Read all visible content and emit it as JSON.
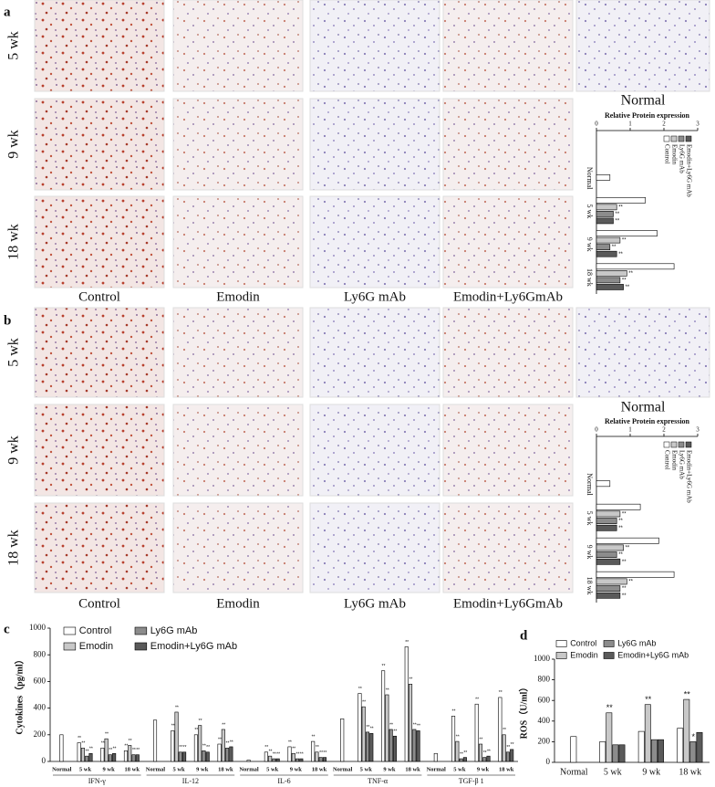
{
  "figure": {
    "panels": [
      "a",
      "b",
      "c",
      "d"
    ],
    "rows": [
      "5 wk",
      "9 wk",
      "18 wk"
    ],
    "columns": [
      "Control",
      "Emodin",
      "Ly6G mAb",
      "Emodin+Ly6GmAb"
    ],
    "normal_label": "Normal"
  },
  "chart_data": [
    {
      "type": "hbar",
      "title": "Relative Protein expression",
      "categories": [
        "Normal",
        "5 wk",
        "9 wk",
        "18 wk"
      ],
      "series": [
        {
          "name": "Control",
          "color": "#ffffff",
          "values": [
            0.4,
            1.45,
            1.8,
            2.3
          ],
          "annotations": [
            null,
            null,
            null,
            null
          ]
        },
        {
          "name": "Emodin",
          "color": "#c8c8c8",
          "values": [
            null,
            0.6,
            0.7,
            0.9
          ],
          "annotations": [
            null,
            "**",
            "**",
            "**"
          ]
        },
        {
          "name": "Ly6G mAb",
          "color": "#8c8c8c",
          "values": [
            null,
            0.5,
            0.4,
            0.7
          ],
          "annotations": [
            null,
            "**",
            "**",
            "**"
          ]
        },
        {
          "name": "Emodin+Ly6G mAb",
          "color": "#5a5a5a",
          "values": [
            null,
            0.5,
            0.6,
            0.8
          ],
          "annotations": [
            null,
            "**",
            "**",
            "**"
          ]
        }
      ],
      "xlim": [
        0,
        3
      ],
      "xticks": [
        0,
        1,
        2,
        3
      ]
    },
    {
      "type": "hbar",
      "title": "Relative Protein expression",
      "categories": [
        "Normal",
        "5 wk",
        "9 wk",
        "18 wk"
      ],
      "series": [
        {
          "name": "Control",
          "color": "#ffffff",
          "values": [
            0.4,
            1.3,
            1.85,
            2.3
          ],
          "annotations": [
            null,
            null,
            null,
            null
          ]
        },
        {
          "name": "Emodin",
          "color": "#c8c8c8",
          "values": [
            null,
            0.7,
            0.8,
            0.9
          ],
          "annotations": [
            null,
            "**",
            "**",
            "**"
          ]
        },
        {
          "name": "Ly6G mAb",
          "color": "#8c8c8c",
          "values": [
            null,
            0.6,
            0.6,
            0.7
          ],
          "annotations": [
            null,
            "**",
            "**",
            "**"
          ]
        },
        {
          "name": "Emodin+Ly6G mAb",
          "color": "#5a5a5a",
          "values": [
            null,
            0.6,
            0.7,
            0.7
          ],
          "annotations": [
            null,
            "**",
            "**",
            "**"
          ]
        }
      ],
      "xlim": [
        0,
        3
      ],
      "xticks": [
        0,
        1,
        2,
        3
      ]
    },
    {
      "type": "bar",
      "y_label": "Cytokines（pg/ml）",
      "groups": [
        "IFN-γ",
        "IL-12",
        "IL-6",
        "TNF-α",
        "TGF-β 1"
      ],
      "categories": [
        "Normal",
        "5 wk",
        "9 wk",
        "18 wk",
        "Normal",
        "5 wk",
        "9 wk",
        "18 wk",
        "Normal",
        "5 wk",
        "9 wk",
        "18 wk",
        "Normal",
        "5 wk",
        "9 wk",
        "18 wk",
        "Normal",
        "5 wk",
        "9 wk",
        "18 wk"
      ],
      "series": [
        {
          "name": "Control",
          "color": "#ffffff",
          "values": [
            200,
            140,
            100,
            80,
            310,
            230,
            200,
            130,
            10,
            70,
            110,
            150,
            320,
            510,
            680,
            860,
            60,
            340,
            430,
            480
          ],
          "annotations": [
            null,
            "**",
            "**",
            "**",
            null,
            "**",
            "**",
            "**",
            null,
            "**",
            "**",
            "**",
            null,
            "**",
            "**",
            "**",
            null,
            "**",
            "**",
            "**"
          ]
        },
        {
          "name": "Emodin",
          "color": "#c8c8c8",
          "values": [
            null,
            100,
            170,
            120,
            null,
            370,
            270,
            240,
            null,
            40,
            60,
            70,
            null,
            410,
            500,
            580,
            null,
            150,
            130,
            200
          ],
          "annotations": [
            null,
            "**",
            "**",
            "**",
            null,
            "**",
            "**",
            "**",
            null,
            "**",
            "**",
            "**",
            null,
            "**",
            "**",
            "**",
            null,
            "**",
            "**",
            "**"
          ]
        },
        {
          "name": "Ly6G mAb",
          "color": "#8c8c8c",
          "values": [
            null,
            40,
            50,
            50,
            null,
            70,
            80,
            100,
            null,
            20,
            20,
            30,
            null,
            220,
            240,
            240,
            null,
            20,
            30,
            70
          ],
          "annotations": [
            null,
            "**",
            "**",
            "**",
            null,
            "**",
            "**",
            "**",
            null,
            "**",
            "**",
            "**",
            null,
            "**",
            "**",
            "**",
            null,
            "**",
            "**",
            "**"
          ]
        },
        {
          "name": "Emodin+Ly6G mAb",
          "color": "#5a5a5a",
          "values": [
            null,
            60,
            60,
            50,
            null,
            70,
            70,
            110,
            null,
            20,
            20,
            30,
            null,
            210,
            190,
            230,
            null,
            30,
            40,
            90
          ],
          "annotations": [
            null,
            "**",
            "**",
            "**",
            null,
            "**",
            "**",
            "**",
            null,
            "**",
            "**",
            "**",
            null,
            "**",
            "**",
            "**",
            null,
            "**",
            "**",
            "**"
          ]
        }
      ],
      "ylim": [
        0,
        1000
      ],
      "yticks": [
        0,
        200,
        400,
        600,
        800,
        1000
      ]
    },
    {
      "type": "bar",
      "y_label": "ROS（U/ml）",
      "categories": [
        "Normal",
        "5 wk",
        "9 wk",
        "18 wk"
      ],
      "series": [
        {
          "name": "Control",
          "color": "#ffffff",
          "values": [
            250,
            200,
            300,
            330
          ],
          "annotations": [
            null,
            null,
            null,
            null
          ]
        },
        {
          "name": "Emodin",
          "color": "#c8c8c8",
          "values": [
            null,
            480,
            560,
            610
          ],
          "annotations": [
            null,
            "**",
            "**",
            "**"
          ]
        },
        {
          "name": "Ly6G mAb",
          "color": "#8c8c8c",
          "values": [
            null,
            170,
            220,
            200
          ],
          "annotations": [
            null,
            null,
            null,
            "*"
          ]
        },
        {
          "name": "Emodin+Ly6G mAb",
          "color": "#5a5a5a",
          "values": [
            null,
            170,
            220,
            290
          ],
          "annotations": [
            null,
            null,
            null,
            null
          ]
        }
      ],
      "ylim": [
        0,
        1000
      ],
      "yticks": [
        0,
        200,
        400,
        600,
        800,
        1000
      ]
    }
  ]
}
